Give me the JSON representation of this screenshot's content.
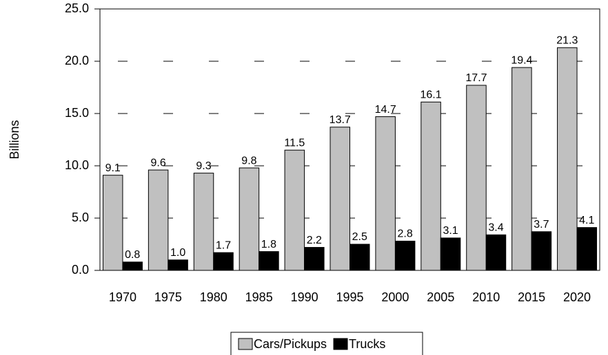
{
  "chart_data": {
    "type": "bar",
    "y_label": "Billions",
    "categories": [
      "1970",
      "1975",
      "1980",
      "1985",
      "1990",
      "1995",
      "2000",
      "2005",
      "2010",
      "2015",
      "2020"
    ],
    "series": [
      {
        "name": "Cars/Pickups",
        "color": "#c0c0c0",
        "values": [
          9.1,
          9.6,
          9.3,
          9.8,
          11.5,
          13.7,
          14.7,
          16.1,
          17.7,
          19.4,
          21.3
        ],
        "value_labels": [
          "9.1",
          "9.6",
          "9.3",
          "9.8",
          "11.5",
          "13.7",
          "14.7",
          "16.1",
          "17.7",
          "19.4",
          "21.3"
        ]
      },
      {
        "name": "Trucks",
        "color": "#000000",
        "values": [
          0.8,
          1.0,
          1.7,
          1.8,
          2.2,
          2.5,
          2.8,
          3.1,
          3.4,
          3.7,
          4.1
        ],
        "value_labels": [
          "0.8",
          "1.0",
          "1.7",
          "1.8",
          "2.2",
          "2.5",
          "2.8",
          "3.1",
          "3.4",
          "3.7",
          "4.1"
        ]
      }
    ],
    "ylim": [
      0,
      25
    ],
    "yticks": [
      {
        "value": 0,
        "label": "0.0"
      },
      {
        "value": 5,
        "label": "5.0"
      },
      {
        "value": 10,
        "label": "10.0"
      },
      {
        "value": 15,
        "label": "15.0"
      },
      {
        "value": 20,
        "label": "20.0"
      },
      {
        "value": 25,
        "label": "25.0"
      }
    ],
    "grid": true,
    "legend": "bottom"
  }
}
